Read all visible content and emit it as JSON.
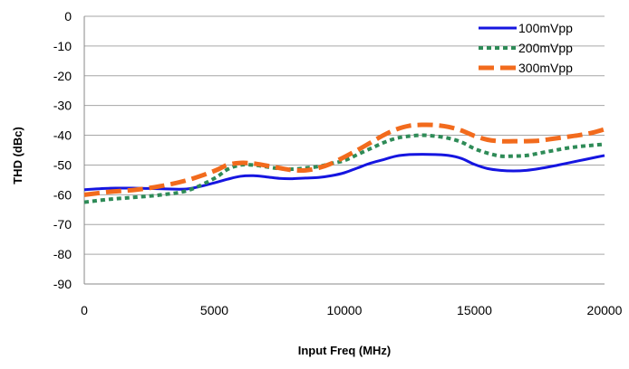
{
  "chart_data": {
    "type": "line",
    "title": "",
    "xlabel": "Input Freq (MHz)",
    "ylabel": "THD (dBc)",
    "xlim": [
      0,
      20000
    ],
    "ylim": [
      -90,
      0
    ],
    "x_ticks": [
      0,
      5000,
      10000,
      15000,
      20000
    ],
    "y_ticks": [
      0,
      -10,
      -20,
      -30,
      -40,
      -50,
      -60,
      -70,
      -80,
      -90
    ],
    "grid": "horizontal",
    "legend_position": "top-right",
    "series": [
      {
        "name": "100mVpp",
        "color": "#1515e0",
        "style": "solid",
        "x": [
          0,
          1000,
          2000,
          3000,
          4000,
          5000,
          5500,
          6000,
          6500,
          7000,
          7500,
          8000,
          8500,
          9000,
          9500,
          10000,
          10500,
          11000,
          11500,
          12000,
          12500,
          13000,
          13500,
          14000,
          14500,
          15000,
          15500,
          16000,
          16500,
          17000,
          17500,
          18000,
          18500,
          19000,
          19500,
          20000
        ],
        "y": [
          -58.3,
          -57.8,
          -57.8,
          -58,
          -58,
          -56,
          -54.8,
          -53.8,
          -53.6,
          -54,
          -54.5,
          -54.6,
          -54.4,
          -54.2,
          -53.6,
          -52.6,
          -51,
          -49.4,
          -48.2,
          -47,
          -46.5,
          -46.4,
          -46.5,
          -46.8,
          -47.8,
          -49.8,
          -51.2,
          -51.8,
          -52,
          -51.8,
          -51.2,
          -50.4,
          -49.5,
          -48.6,
          -47.7,
          -46.8
        ]
      },
      {
        "name": "200mVpp",
        "color": "#2e8b57",
        "style": "dotted",
        "x": [
          0,
          1000,
          2000,
          3000,
          4000,
          5000,
          5500,
          6000,
          6500,
          7000,
          7500,
          8000,
          8500,
          9000,
          9500,
          10000,
          10500,
          11000,
          11500,
          12000,
          12500,
          13000,
          13500,
          14000,
          14500,
          15000,
          15500,
          16000,
          16500,
          17000,
          17500,
          18000,
          18500,
          19000,
          19500,
          20000
        ],
        "y": [
          -62.5,
          -61.5,
          -60.8,
          -60,
          -58.5,
          -54.5,
          -51.5,
          -50,
          -50,
          -50.6,
          -51.2,
          -51.4,
          -51,
          -50.5,
          -49.5,
          -48.5,
          -46.5,
          -44.5,
          -42.5,
          -41,
          -40.3,
          -40,
          -40.3,
          -41,
          -42.3,
          -44.5,
          -46,
          -47,
          -47,
          -46.8,
          -46,
          -45.2,
          -44.4,
          -43.8,
          -43.4,
          -43
        ]
      },
      {
        "name": "300mVpp",
        "color": "#f26b1d",
        "style": "dashed",
        "x": [
          0,
          1000,
          2000,
          3000,
          4000,
          5000,
          5500,
          6000,
          6500,
          7000,
          7500,
          8000,
          8500,
          9000,
          9500,
          10000,
          10500,
          11000,
          11500,
          12000,
          12500,
          13000,
          13500,
          14000,
          14500,
          15000,
          15500,
          16000,
          16500,
          17000,
          17500,
          18000,
          18500,
          19000,
          19500,
          20000
        ],
        "y": [
          -60,
          -59,
          -58.3,
          -57,
          -55,
          -52,
          -50,
          -49.3,
          -49.5,
          -50.2,
          -51,
          -51.7,
          -51.8,
          -51,
          -49.5,
          -47.3,
          -45,
          -42.5,
          -40,
          -38,
          -36.8,
          -36.5,
          -36.6,
          -37.2,
          -38.4,
          -40.2,
          -41.5,
          -42,
          -42,
          -42,
          -41.8,
          -41.2,
          -40.6,
          -40,
          -39.2,
          -38
        ]
      }
    ]
  }
}
